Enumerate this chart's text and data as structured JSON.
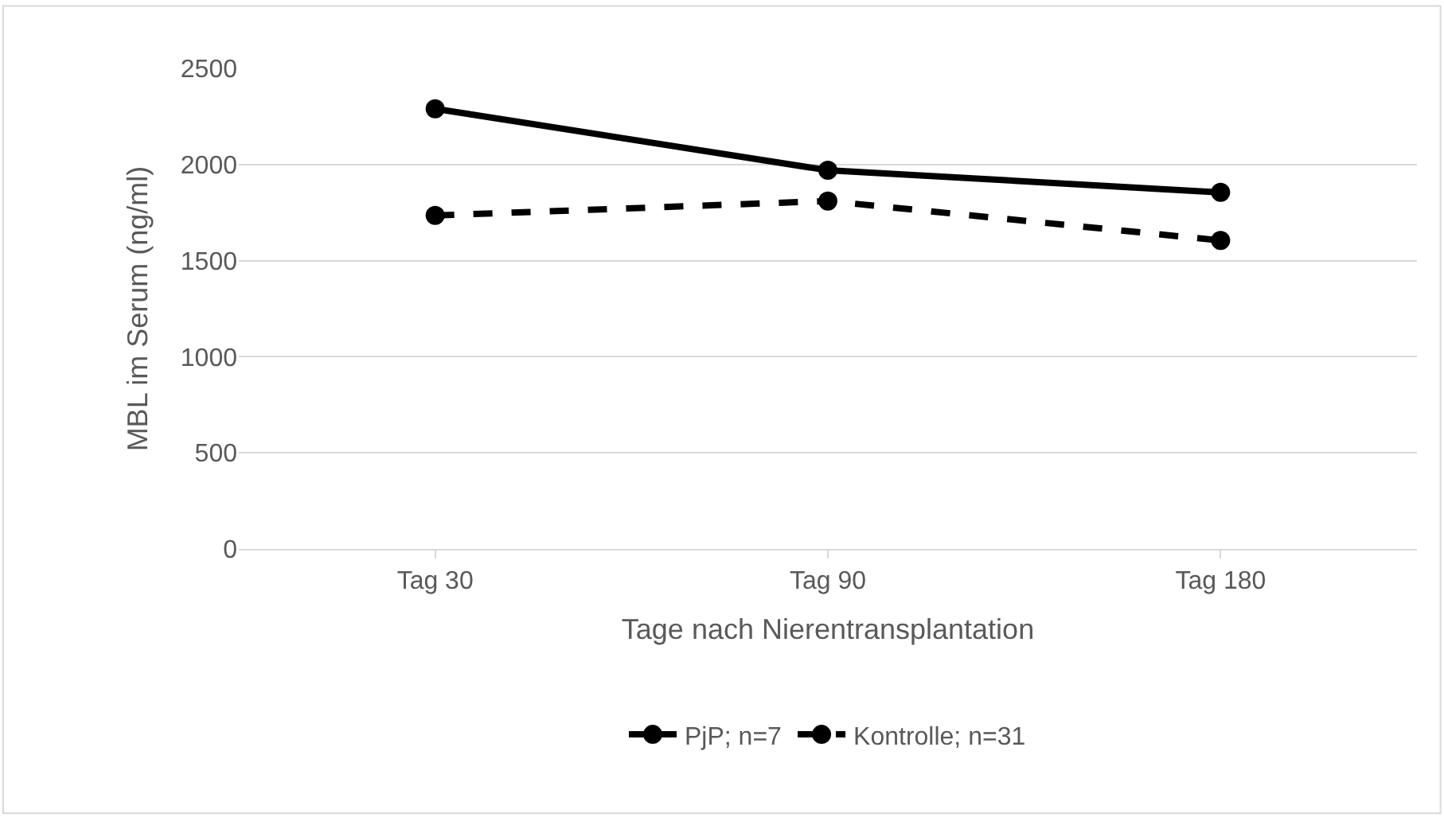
{
  "chart_data": {
    "type": "line",
    "xlabel": "Tage nach Nierentransplantation",
    "ylabel": "MBL im Serum (ng/ml)",
    "categories": [
      "Tag 30",
      "Tag 90",
      "Tag 180"
    ],
    "series": [
      {
        "name": "PjP; n=7",
        "color": "#000000",
        "values": [
          2290,
          1970,
          1855
        ],
        "line_style": "solid",
        "marker": "circle"
      },
      {
        "name": "Kontrolle; n=31",
        "color": "#000000",
        "values": [
          1735,
          1810,
          1605
        ],
        "line_style": "dashed",
        "marker": "circle"
      }
    ],
    "ylim": [
      0,
      2500
    ],
    "yticks": [
      0,
      500,
      1000,
      1500,
      2000,
      2500
    ],
    "grid": "y",
    "legend": "bottom"
  }
}
